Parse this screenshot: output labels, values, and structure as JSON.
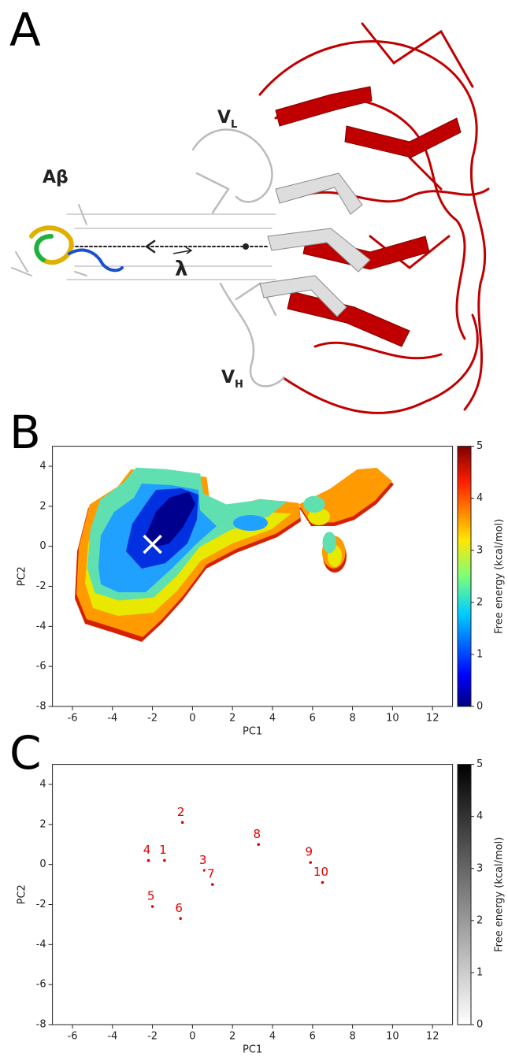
{
  "figure": {
    "panel_labels": [
      "A",
      "B",
      "C"
    ],
    "structure": {
      "peptide": "Aβ",
      "light_chain": {
        "base": "V",
        "subscript": "L"
      },
      "heavy_chain": {
        "base": "V",
        "subscript": "H"
      },
      "vector": "λ"
    }
  },
  "chart_data": [
    {
      "type": "heatmap",
      "xlabel": "PC1",
      "ylabel": "PC2",
      "xlim": [
        -7,
        13
      ],
      "ylim": [
        -8,
        5
      ],
      "xticks": [
        -6,
        -4,
        -2,
        0,
        2,
        4,
        6,
        8,
        10,
        12
      ],
      "yticks": [
        -8,
        -6,
        -4,
        -2,
        0,
        2,
        4
      ],
      "colormap": "jet",
      "colorbar": {
        "label": "Free energy (kcal/mol)",
        "lim": [
          0,
          5
        ],
        "ticks": [
          0,
          1,
          2,
          3,
          4,
          5
        ]
      },
      "marker": {
        "x": -2,
        "y": 0.1
      }
    },
    {
      "type": "heatmap",
      "xlabel": "PC1",
      "ylabel": "PC2",
      "xlim": [
        -7,
        13
      ],
      "ylim": [
        -8,
        5
      ],
      "xticks": [
        -6,
        -4,
        -2,
        0,
        2,
        4,
        6,
        8,
        10,
        12
      ],
      "yticks": [
        -8,
        -6,
        -4,
        -2,
        0,
        2,
        4
      ],
      "colormap": "gray",
      "colorbar": {
        "label": "Free energy (kcal/mol)",
        "lim": [
          0,
          5
        ],
        "ticks": [
          0,
          1,
          2,
          3,
          4,
          5
        ]
      },
      "points": {
        "labels": [
          "1",
          "2",
          "3",
          "4",
          "5",
          "6",
          "7",
          "8",
          "9",
          "10"
        ],
        "x": [
          -1.4,
          -0.5,
          0.6,
          -2.2,
          -2.0,
          -0.6,
          1.0,
          3.3,
          5.9,
          6.5
        ],
        "y": [
          0.2,
          2.1,
          -0.3,
          0.2,
          -2.1,
          -2.7,
          -1.0,
          1.0,
          0.1,
          -0.9
        ]
      }
    }
  ]
}
